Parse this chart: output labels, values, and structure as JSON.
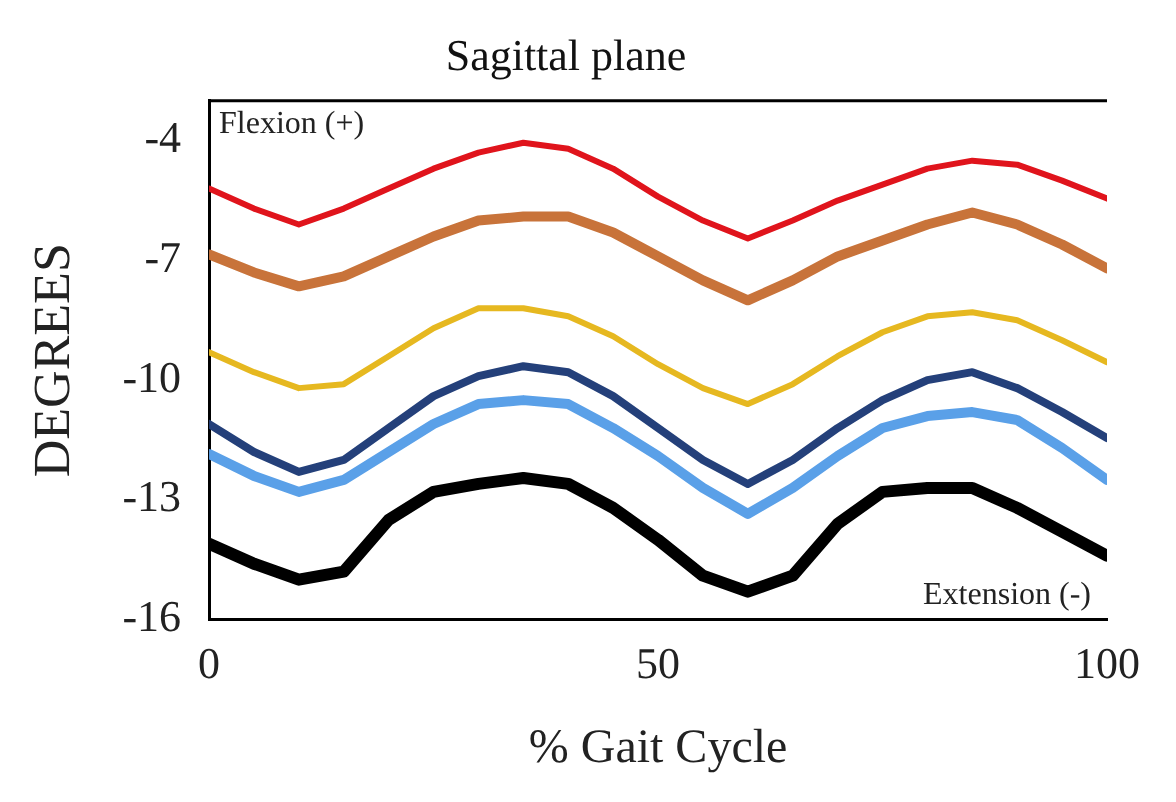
{
  "chart_data": {
    "type": "line",
    "title": "Sagittal plane",
    "xlabel": "% Gait Cycle",
    "ylabel": "DEGREES",
    "x": [
      0,
      5,
      10,
      15,
      20,
      25,
      30,
      35,
      40,
      45,
      50,
      55,
      60,
      65,
      70,
      75,
      80,
      85,
      90,
      95,
      100
    ],
    "xlim": [
      0,
      100
    ],
    "xticks": [
      0,
      50,
      100
    ],
    "ylim": [
      -16,
      -3
    ],
    "yticks": [
      -4,
      -7,
      -10,
      -13,
      -16
    ],
    "grid": false,
    "legend": false,
    "marker": "none",
    "line_style": "solid",
    "annotations": [
      "Flexion (+)",
      "Extension (-)"
    ],
    "series": [
      {
        "color": "#e0141c",
        "values": [
          -5.2,
          -5.7,
          -6.1,
          -5.7,
          -5.2,
          -4.7,
          -4.3,
          -4.05,
          -4.2,
          -4.7,
          -5.4,
          -6.0,
          -6.45,
          -6.0,
          -5.5,
          -5.1,
          -4.7,
          -4.5,
          -4.6,
          -5.0,
          -5.45
        ]
      },
      {
        "color": "#c8733a",
        "values": [
          -6.85,
          -7.3,
          -7.65,
          -7.4,
          -6.9,
          -6.4,
          -6.0,
          -5.9,
          -5.9,
          -6.3,
          -6.9,
          -7.5,
          -8.0,
          -7.5,
          -6.9,
          -6.5,
          -6.1,
          -5.8,
          -6.1,
          -6.6,
          -7.2
        ]
      },
      {
        "color": "#e6b820",
        "values": [
          -9.3,
          -9.8,
          -10.2,
          -10.1,
          -9.4,
          -8.7,
          -8.2,
          -8.2,
          -8.4,
          -8.9,
          -9.6,
          -10.2,
          -10.6,
          -10.1,
          -9.4,
          -8.8,
          -8.4,
          -8.3,
          -8.5,
          -9.0,
          -9.55
        ]
      },
      {
        "color": "#24407a",
        "values": [
          -11.1,
          -11.8,
          -12.3,
          -12.0,
          -11.2,
          -10.4,
          -9.9,
          -9.65,
          -9.8,
          -10.4,
          -11.2,
          -12.0,
          -12.6,
          -12.0,
          -11.2,
          -10.5,
          -10.0,
          -9.8,
          -10.2,
          -10.8,
          -11.45
        ]
      },
      {
        "color": "#5aa0e8",
        "values": [
          -11.85,
          -12.4,
          -12.8,
          -12.5,
          -11.8,
          -11.1,
          -10.6,
          -10.5,
          -10.6,
          -11.2,
          -11.9,
          -12.7,
          -13.35,
          -12.7,
          -11.9,
          -11.2,
          -10.9,
          -10.8,
          -11.0,
          -11.7,
          -12.5
        ]
      },
      {
        "color": "#000000",
        "values": [
          -14.1,
          -14.6,
          -15.0,
          -14.8,
          -13.5,
          -12.8,
          -12.6,
          -12.45,
          -12.6,
          -13.2,
          -14.0,
          -14.9,
          -15.3,
          -14.9,
          -13.6,
          -12.8,
          -12.7,
          -12.7,
          -13.2,
          -13.8,
          -14.4
        ]
      }
    ]
  }
}
